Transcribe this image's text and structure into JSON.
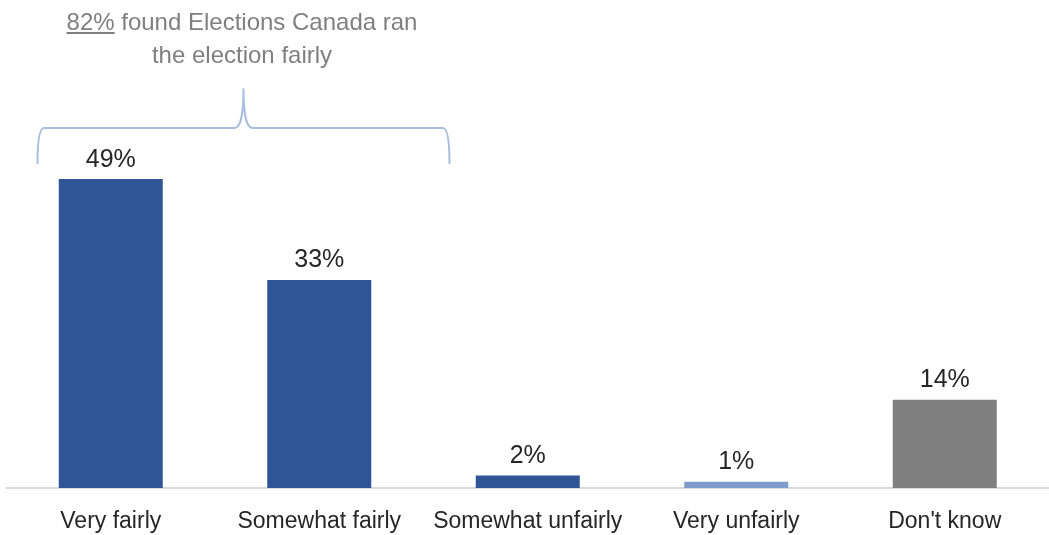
{
  "chart_data": {
    "type": "bar",
    "annotations": [
      "82% found Elections Canada ran the election fairly"
    ],
    "categories": [
      "Very fairly",
      "Somewhat fairly",
      "Somewhat unfairly",
      "Very unfairly",
      "Don't know"
    ],
    "values": [
      49,
      33,
      2,
      1,
      14
    ],
    "colors": [
      "#2f5597",
      "#2f5597",
      "#2f5597",
      "#7f9bcb",
      "#7f7f7f"
    ],
    "value_labels": [
      "49%",
      "33%",
      "2%",
      "1%",
      "14%"
    ],
    "tick_labels": "x"
  }
}
